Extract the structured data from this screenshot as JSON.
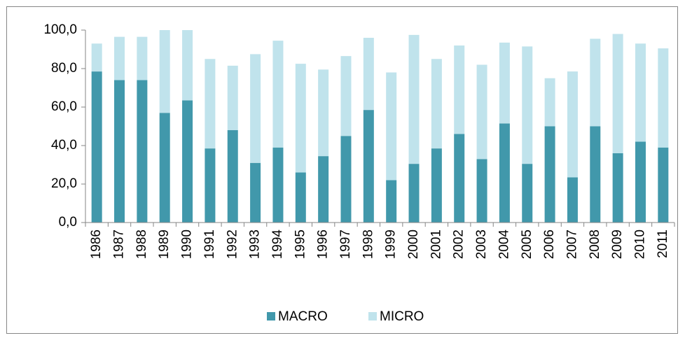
{
  "chart_data": {
    "type": "stacked_bar",
    "categories": [
      "1986",
      "1987",
      "1988",
      "1989",
      "1990",
      "1991",
      "1992",
      "1993",
      "1994",
      "1995",
      "1996",
      "1997",
      "1998",
      "1999",
      "2000",
      "2001",
      "2002",
      "2003",
      "2004",
      "2005",
      "2006",
      "2007",
      "2008",
      "2009",
      "2010",
      "2011"
    ],
    "series": [
      {
        "name": "MACRO",
        "color": "#4198ab",
        "values": [
          78.5,
          74,
          74,
          57,
          63.5,
          38.5,
          48,
          31,
          39,
          26,
          34.5,
          45,
          58.5,
          22,
          30.5,
          38.5,
          46,
          33,
          51.5,
          30.5,
          50,
          23.5,
          50,
          36,
          42,
          39
        ]
      },
      {
        "name": "MICRO",
        "color": "#c0e3ec",
        "values": [
          14.5,
          22.5,
          22.5,
          43,
          36.5,
          46.5,
          33.5,
          56.5,
          55.5,
          56.5,
          45,
          41.5,
          37.5,
          56,
          67,
          46.5,
          46,
          49,
          42,
          61,
          25,
          55,
          45.5,
          62,
          51,
          51.5
        ]
      }
    ],
    "ylim": [
      0,
      100
    ],
    "yticks": [
      {
        "value": 0,
        "label": "0,0"
      },
      {
        "value": 20,
        "label": "20,0"
      },
      {
        "value": 40,
        "label": "40,0"
      },
      {
        "value": 60,
        "label": "60,0"
      },
      {
        "value": 80,
        "label": "80,0"
      },
      {
        "value": 100,
        "label": "100,0"
      }
    ],
    "legend": "bottom"
  }
}
